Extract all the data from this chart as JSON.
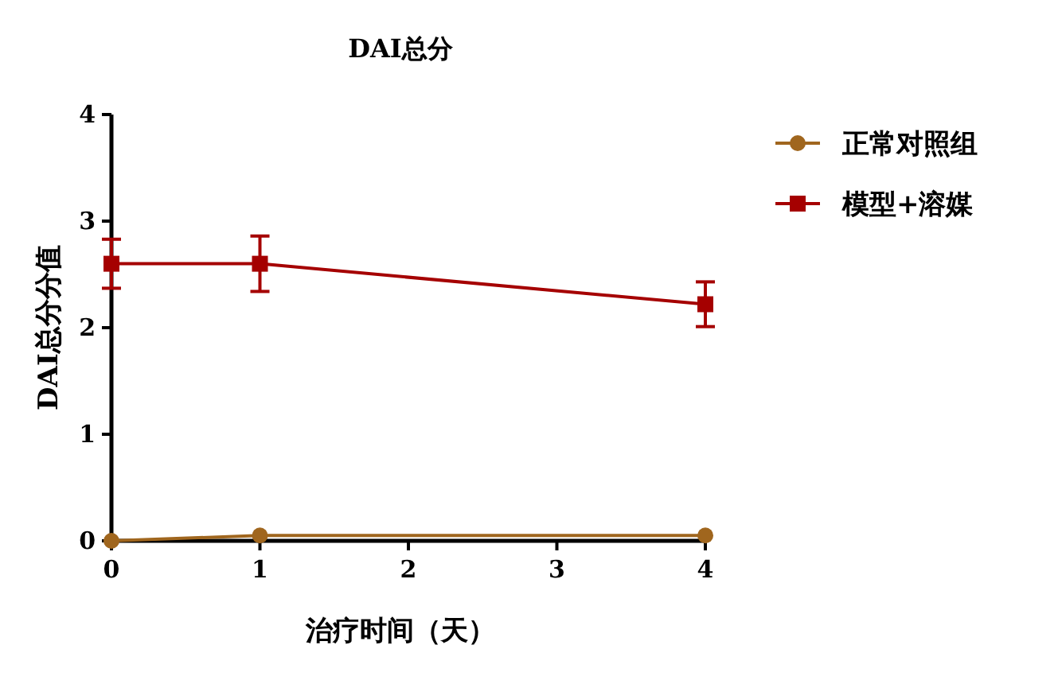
{
  "chart_data": {
    "type": "line",
    "title": "DAI总分",
    "xlabel": "治疗时间（天）",
    "ylabel": "DAI总分分值",
    "x": [
      0,
      1,
      4
    ],
    "xlim": [
      0,
      4
    ],
    "xticks": [
      0,
      1,
      2,
      3,
      4
    ],
    "ylim": [
      0,
      4
    ],
    "yticks": [
      0,
      1,
      2,
      3,
      4
    ],
    "legend": "top right",
    "series": [
      {
        "name": "正常对照组",
        "color": "#a0661e",
        "marker": "circle",
        "values": [
          0,
          0.05,
          0.05
        ]
      },
      {
        "name": "模型+溶媒",
        "color": "#a50000",
        "marker": "square",
        "values": [
          2.6,
          2.6,
          2.22
        ],
        "errors": [
          0.23,
          0.26,
          0.21
        ]
      }
    ]
  }
}
